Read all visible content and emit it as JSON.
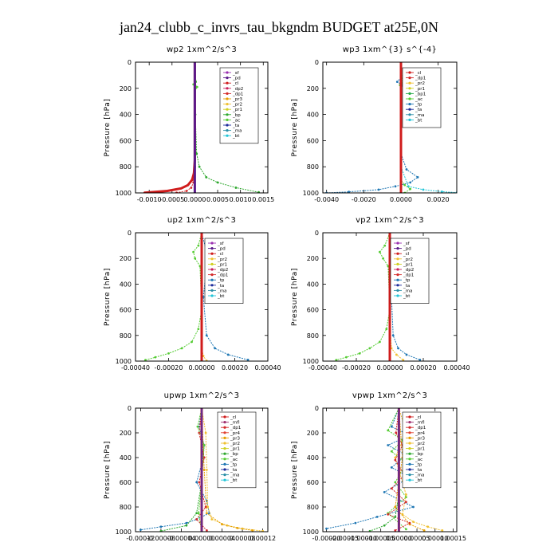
{
  "figure_title": "jan24_clubb_c_invrs_tau_bkgndm  BUDGET at25E,0N",
  "colors": {
    "_sf": "#9a2fb0",
    "_pd": "#5b1a8a",
    "_cl": "#d01c1c",
    "_dp2": "#c81e5a",
    "_dp1": "#d42a2a",
    "_pr3": "#e69f00",
    "_pr2": "#f0c030",
    "_pr1": "#cfd020",
    "_bp": "#2ea82e",
    "_ac": "#55cc33",
    "_tp": "#1f77b4",
    "_ta": "#1b2a9a",
    "_ma": "#2b8fa8",
    "_bt": "#22c5d8",
    "_mfl": "#a03070",
    "_pr4": "#e04030",
    "_bp1": "#22aa44",
    "_dp4": "#b01818",
    "_dp3": "#c04040"
  },
  "chart_data": [
    {
      "type": "line",
      "title": "wp2   1xm^2/s^3",
      "ylabel": "Pressure  [hPa]",
      "xlim": [
        -0.0013,
        0.0016
      ],
      "ylim": [
        1000,
        0
      ],
      "xticks": [
        -0.001,
        -0.0005,
        0.0,
        0.0005,
        0.001,
        0.0015
      ],
      "xtick_labels": [
        "-0.0010",
        "-0.0005",
        "0.0000",
        "0.0005",
        "0.0010",
        "0.0015"
      ],
      "yticks": [
        0,
        200,
        400,
        600,
        800,
        1000
      ],
      "ytick_labels": [
        "0",
        "200",
        "400",
        "600",
        "800",
        "1000"
      ],
      "legend": [
        "_sf",
        "_pd",
        "_cl",
        "_dp2",
        "_dp1",
        "_pr3",
        "_pr2",
        "_pr1",
        "_bp",
        "_ac",
        "_ta",
        "_ma",
        "_bt"
      ],
      "series": [
        {
          "key": "_bp",
          "x": [
            0,
            0,
            2e-05,
            1e-05,
            0,
            1e-05,
            4e-05,
            0.0001,
            0.00025,
            0.0005,
            0.0009,
            0.0014
          ],
          "y": [
            0,
            100,
            150,
            180,
            220,
            400,
            700,
            800,
            880,
            920,
            960,
            995
          ]
        },
        {
          "key": "_cl",
          "x": [
            0,
            0,
            0,
            0,
            -2e-05,
            -6e-05,
            -0.00015,
            -0.0003,
            -0.0006,
            -0.0011
          ],
          "y": [
            0,
            200,
            500,
            750,
            850,
            900,
            940,
            965,
            985,
            998
          ]
        },
        {
          "key": "_dp1",
          "x": [
            0,
            0,
            0,
            -1e-05,
            -3e-05,
            -8e-05,
            -0.00018,
            -0.0004
          ],
          "y": [
            0,
            300,
            700,
            850,
            920,
            960,
            985,
            998
          ]
        },
        {
          "key": "_ac",
          "x": [
            0,
            1e-05,
            -3e-05,
            5e-05,
            0,
            0
          ],
          "y": [
            0,
            140,
            170,
            190,
            220,
            1000
          ]
        },
        {
          "key": "_pd",
          "x": [
            0,
            0,
            0,
            0
          ],
          "y": [
            0,
            400,
            800,
            1000
          ]
        }
      ]
    },
    {
      "type": "line",
      "title": "wp3   1xm^{3} s^{-4}",
      "ylabel": "Pressure  [hPa]",
      "xlim": [
        -0.0042,
        0.003
      ],
      "ylim": [
        1000,
        0
      ],
      "xticks": [
        -0.004,
        -0.002,
        0.0,
        0.002
      ],
      "xtick_labels": [
        "-0.0040",
        "-0.0020",
        "0.0000",
        "0.0020"
      ],
      "yticks": [
        0,
        200,
        400,
        600,
        800,
        1000
      ],
      "ytick_labels": [
        "0",
        "200",
        "400",
        "600",
        "800",
        "1000"
      ],
      "legend": [
        "_cl",
        "_dp1",
        "_pr2",
        "_pr1",
        "_bp1",
        "_ac",
        "_tp",
        "_ta",
        "_ma",
        "_bt"
      ],
      "series": [
        {
          "key": "_tp",
          "x": [
            0,
            0,
            -0.0002,
            0.0001,
            0,
            0,
            0.0003,
            0.0009,
            0.0005,
            -0.0003,
            -0.0012,
            -0.0028,
            -0.004
          ],
          "y": [
            0,
            120,
            150,
            175,
            200,
            700,
            820,
            880,
            920,
            950,
            975,
            992,
            1000
          ]
        },
        {
          "key": "_bt",
          "x": [
            0,
            0,
            0.0004,
            0.0012,
            0.0022,
            0.003
          ],
          "y": [
            0,
            800,
            950,
            975,
            990,
            998
          ]
        },
        {
          "key": "_ac",
          "x": [
            0,
            8e-05,
            -5e-05,
            0,
            0,
            0.0002,
            0.0005,
            0.0002
          ],
          "y": [
            0,
            160,
            175,
            190,
            900,
            940,
            970,
            1000
          ]
        },
        {
          "key": "_cl",
          "x": [
            0,
            0,
            0,
            0
          ],
          "y": [
            0,
            400,
            800,
            1000
          ]
        }
      ]
    },
    {
      "type": "line",
      "title": "up2   1xm^2/s^3",
      "ylabel": "Pressure  [hPa]",
      "xlim": [
        -0.0004,
        0.0004
      ],
      "ylim": [
        1000,
        0
      ],
      "xticks": [
        -0.0004,
        -0.0002,
        0.0,
        0.0002,
        0.0004
      ],
      "xtick_labels": [
        "-0.00040",
        "-0.00020",
        "0.00000",
        "0.00020",
        "0.00040"
      ],
      "yticks": [
        0,
        200,
        400,
        600,
        800,
        1000
      ],
      "ytick_labels": [
        "0",
        "200",
        "400",
        "600",
        "800",
        "1000"
      ],
      "legend": [
        "_sf",
        "_pd",
        "_cl",
        "_pr2",
        "_pr1",
        "_dp2",
        "_dp1",
        "_tp",
        "_ta",
        "_ma",
        "_bt"
      ],
      "series": [
        {
          "key": "_ac",
          "x": [
            0,
            -2e-05,
            -5e-05,
            -4e-05,
            -1e-05,
            0,
            -2e-05,
            -6e-05,
            -0.00012,
            -0.0002,
            -0.00028,
            -0.00034
          ],
          "y": [
            0,
            100,
            150,
            200,
            260,
            600,
            750,
            850,
            900,
            940,
            970,
            992
          ]
        },
        {
          "key": "_tp",
          "x": [
            0,
            3e-05,
            6e-05,
            3e-05,
            1e-05,
            3e-05,
            8e-05,
            0.00016,
            0.00028
          ],
          "y": [
            0,
            150,
            200,
            260,
            500,
            800,
            900,
            950,
            990
          ]
        },
        {
          "key": "_pr2",
          "x": [
            0,
            0,
            0,
            1e-05,
            3e-05
          ],
          "y": [
            0,
            500,
            900,
            960,
            998
          ]
        },
        {
          "key": "_cl",
          "x": [
            0,
            0,
            0,
            0
          ],
          "y": [
            0,
            400,
            800,
            1000
          ]
        }
      ]
    },
    {
      "type": "line",
      "title": "vp2   1xm^2/s^3",
      "ylabel": "Pressure  [hPa]",
      "xlim": [
        -0.0004,
        0.0004
      ],
      "ylim": [
        1000,
        0
      ],
      "xticks": [
        -0.0004,
        -0.0002,
        0.0,
        0.0002,
        0.0004
      ],
      "xtick_labels": [
        "-0.00040",
        "-0.00020",
        "0.00000",
        "0.00020",
        "0.00040"
      ],
      "yticks": [
        0,
        200,
        400,
        600,
        800,
        1000
      ],
      "ytick_labels": [
        "0",
        "200",
        "400",
        "600",
        "800",
        "1000"
      ],
      "legend": [
        "_sf",
        "_pd",
        "_cl",
        "_pr2",
        "_pr1",
        "_dp2",
        "_dp1",
        "_tp",
        "_ta",
        "_ma",
        "_bt"
      ],
      "series": [
        {
          "key": "_ac",
          "x": [
            0,
            -3e-05,
            -6e-05,
            -4e-05,
            -1e-05,
            0,
            -2e-05,
            -6e-05,
            -0.00012,
            -0.00018,
            -0.00026,
            -0.00032
          ],
          "y": [
            0,
            100,
            150,
            200,
            260,
            600,
            750,
            850,
            900,
            940,
            970,
            992
          ]
        },
        {
          "key": "_tp",
          "x": [
            0,
            2e-05,
            5e-05,
            2e-05,
            1e-05,
            2e-05,
            5e-05,
            0.0001,
            0.00018
          ],
          "y": [
            0,
            150,
            200,
            260,
            500,
            800,
            900,
            950,
            990
          ]
        },
        {
          "key": "_pr2",
          "x": [
            0,
            0,
            1e-05,
            4e-05,
            8e-05
          ],
          "y": [
            0,
            700,
            900,
            950,
            992
          ]
        },
        {
          "key": "_cl",
          "x": [
            0,
            0,
            0,
            0
          ],
          "y": [
            0,
            400,
            800,
            1000
          ]
        }
      ]
    },
    {
      "type": "line",
      "title": "upwp   1xm^2/s^3",
      "ylabel": "Pressure  [hPa]",
      "xlim": [
        -0.00013,
        0.00013
      ],
      "ylim": [
        1000,
        0
      ],
      "xticks": [
        -0.00012,
        -8e-05,
        -4e-05,
        0.0,
        4e-05,
        8e-05,
        0.00012
      ],
      "xtick_labels": [
        "-0.00012",
        "-0.00008",
        "-0.00004",
        "0.00000",
        "0.00004",
        "0.00008",
        "0.00012"
      ],
      "yticks": [
        0,
        200,
        400,
        600,
        800,
        1000
      ],
      "ytick_labels": [
        "0",
        "200",
        "400",
        "600",
        "800",
        "1000"
      ],
      "legend": [
        "_cl",
        "_mfl",
        "_dp1",
        "_pr4",
        "_pr3",
        "_pr2",
        "_pr1",
        "_bp",
        "_ac",
        "_tp",
        "_ta",
        "_ma",
        "_bt"
      ],
      "series": [
        {
          "key": "_tp",
          "x": [
            0,
            -5e-06,
            5e-06,
            0,
            -1e-05,
            1e-05,
            1.5e-05,
            -1e-05,
            -3e-05,
            -8e-05,
            -0.00012
          ],
          "y": [
            0,
            150,
            300,
            450,
            600,
            750,
            850,
            900,
            930,
            960,
            985
          ]
        },
        {
          "key": "_pr2",
          "x": [
            0,
            8e-06,
            1e-05,
            1.2e-05,
            2e-05,
            5e-05,
            8e-05,
            0.00012
          ],
          "y": [
            0,
            200,
            500,
            800,
            900,
            950,
            975,
            995
          ]
        },
        {
          "key": "_pr3",
          "x": [
            0,
            5e-06,
            1e-05,
            4e-05,
            7e-05,
            0.0001
          ],
          "y": [
            0,
            500,
            850,
            940,
            970,
            990
          ]
        },
        {
          "key": "_bp",
          "x": [
            0,
            0,
            -1e-05,
            -3e-05,
            -8e-05
          ],
          "y": [
            0,
            600,
            850,
            950,
            995
          ]
        },
        {
          "key": "_dp1",
          "x": [
            0,
            -5e-06,
            5e-06,
            -5e-06,
            8e-06,
            -1e-05,
            1e-05
          ],
          "y": [
            0,
            200,
            400,
            600,
            800,
            900,
            990
          ]
        },
        {
          "key": "_ac",
          "x": [
            0,
            -8e-06,
            5e-06,
            0,
            -6e-06,
            0
          ],
          "y": [
            0,
            150,
            300,
            600,
            850,
            1000
          ]
        },
        {
          "key": "_cl",
          "x": [
            0,
            0,
            0,
            0
          ],
          "y": [
            0,
            400,
            800,
            1000
          ]
        }
      ]
    },
    {
      "type": "line",
      "title": "vpwp   1xm^2/s^3",
      "ylabel": "Pressure  [hPa]",
      "xlim": [
        -0.00021,
        0.00016
      ],
      "ylim": [
        1000,
        0
      ],
      "xticks": [
        -0.0002,
        -0.00015,
        -0.0001,
        -5e-05,
        0.0,
        5e-05,
        0.0001,
        0.00015
      ],
      "xtick_labels": [
        "-0.00020",
        "-0.00015",
        "-0.00010",
        "-0.00005",
        "0.00000",
        "0.00005",
        "0.00010",
        "0.00015"
      ],
      "yticks": [
        0,
        200,
        400,
        600,
        800,
        1000
      ],
      "ytick_labels": [
        "0",
        "200",
        "400",
        "600",
        "800",
        "1000"
      ],
      "legend": [
        "_cl",
        "_mfl",
        "_dp1",
        "_pr4",
        "_pr3",
        "_pr2",
        "_pr1",
        "_bp",
        "_ac",
        "_tp",
        "_ta",
        "_ma",
        "_bt"
      ],
      "series": [
        {
          "key": "_tp",
          "x": [
            0,
            -2e-05,
            3e-05,
            -3e-05,
            2e-05,
            -2e-05,
            3e-05,
            -4e-05,
            4e-05,
            -6e-05,
            -0.00012,
            -0.0002
          ],
          "y": [
            0,
            150,
            220,
            300,
            380,
            480,
            560,
            680,
            800,
            880,
            930,
            975
          ]
        },
        {
          "key": "_ac",
          "x": [
            0,
            -3e-05,
            1e-05,
            -2e-05,
            2e-05,
            -1e-05,
            2e-05,
            -3e-05,
            2e-05
          ],
          "y": [
            0,
            180,
            260,
            350,
            450,
            600,
            720,
            850,
            980
          ]
        },
        {
          "key": "_pr2",
          "x": [
            0,
            2e-05,
            -1e-05,
            2e-05,
            1e-05,
            4e-05,
            8e-05,
            0.00012
          ],
          "y": [
            0,
            200,
            400,
            700,
            860,
            920,
            960,
            990
          ]
        },
        {
          "key": "_pr3",
          "x": [
            0,
            1e-05,
            -1e-05,
            3e-05,
            7e-05
          ],
          "y": [
            0,
            400,
            800,
            940,
            990
          ]
        },
        {
          "key": "_dp1",
          "x": [
            0,
            -8e-06,
            1e-05,
            -1e-05,
            1.5e-05,
            -2e-05,
            2e-05,
            -3e-05,
            3e-05,
            -1e-05
          ],
          "y": [
            0,
            200,
            300,
            420,
            540,
            650,
            760,
            860,
            930,
            990
          ]
        },
        {
          "key": "_bp",
          "x": [
            0,
            0,
            -1e-05,
            -4e-05,
            -8e-05
          ],
          "y": [
            0,
            700,
            880,
            950,
            995
          ]
        },
        {
          "key": "_cl",
          "x": [
            0,
            0,
            0,
            0
          ],
          "y": [
            0,
            400,
            800,
            1000
          ]
        }
      ]
    }
  ]
}
